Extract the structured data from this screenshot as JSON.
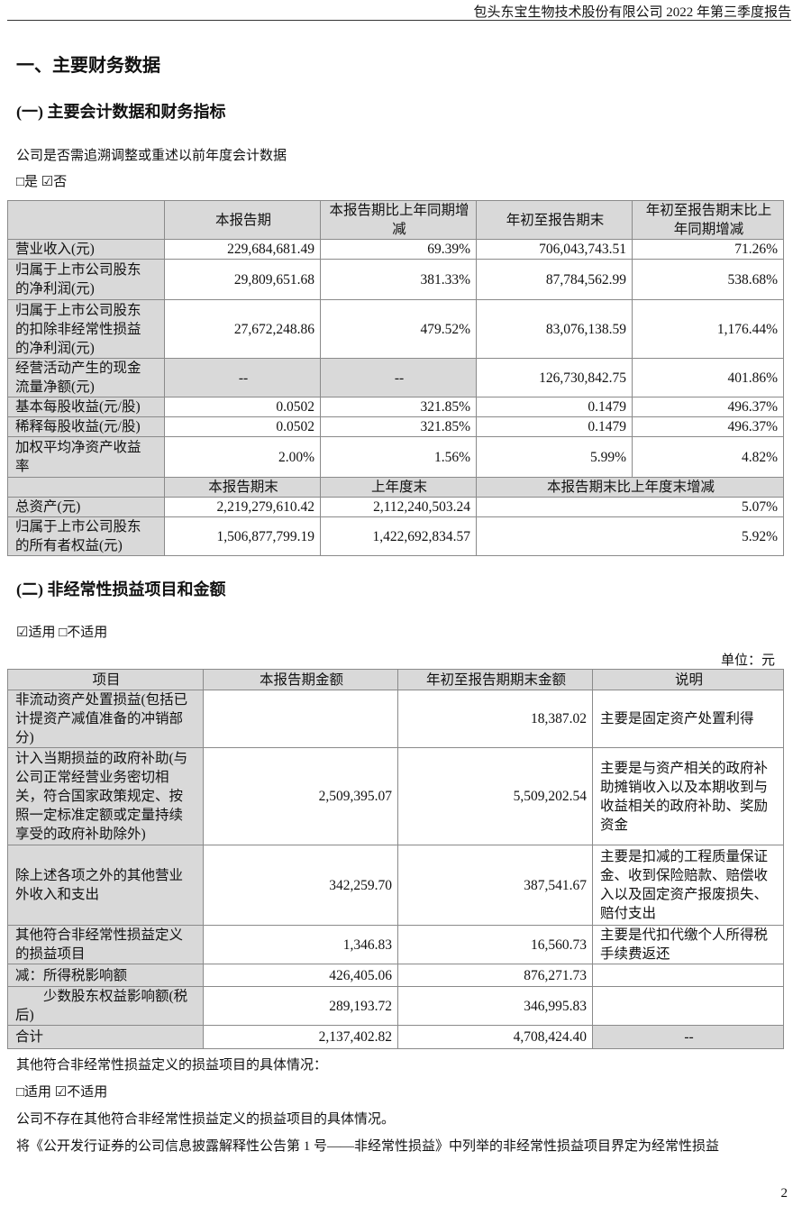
{
  "header": {
    "title": "包头东宝生物技术股份有限公司 2022 年第三季度报告"
  },
  "section_title": "一、主要财务数据",
  "sub1": {
    "title": "(一) 主要会计数据和财务指标",
    "question": "公司是否需追溯调整或重述以前年度会计数据",
    "options": "□是 ☑否",
    "table": {
      "headers": [
        "",
        "本报告期",
        "本报告期比上年同期增减",
        "年初至报告期末",
        "年初至报告期末比上年同期增减"
      ],
      "rows": [
        {
          "label": "营业收入(元)",
          "values": [
            "229,684,681.49",
            "69.39%",
            "706,043,743.51",
            "71.26%"
          ]
        },
        {
          "label": "归属于上市公司股东的净利润(元)",
          "values": [
            "29,809,651.68",
            "381.33%",
            "87,784,562.99",
            "538.68%"
          ]
        },
        {
          "label": "归属于上市公司股东的扣除非经常性损益的净利润(元)",
          "values": [
            "27,672,248.86",
            "479.52%",
            "83,076,138.59",
            "1,176.44%"
          ]
        },
        {
          "label": "经营活动产生的现金流量净额(元)",
          "values": [
            "--",
            "--",
            "126,730,842.75",
            "401.86%"
          ]
        },
        {
          "label": "基本每股收益(元/股)",
          "values": [
            "0.0502",
            "321.85%",
            "0.1479",
            "496.37%"
          ]
        },
        {
          "label": "稀释每股收益(元/股)",
          "values": [
            "0.0502",
            "321.85%",
            "0.1479",
            "496.37%"
          ]
        },
        {
          "label": "加权平均净资产收益率",
          "values": [
            "2.00%",
            "1.56%",
            "5.99%",
            "4.82%"
          ]
        }
      ],
      "headers2": [
        "",
        "本报告期末",
        "上年度末",
        "本报告期末比上年度末增减"
      ],
      "rows2": [
        {
          "label": "总资产(元)",
          "values": [
            "2,219,279,610.42",
            "2,112,240,503.24",
            "5.07%"
          ]
        },
        {
          "label": "归属于上市公司股东的所有者权益(元)",
          "values": [
            "1,506,877,799.19",
            "1,422,692,834.57",
            "5.92%"
          ]
        }
      ]
    }
  },
  "sub2": {
    "title": "(二) 非经常性损益项目和金额",
    "options": "☑适用 □不适用",
    "unit": "单位：元",
    "table": {
      "headers": [
        "项目",
        "本报告期金额",
        "年初至报告期期末金额",
        "说明"
      ],
      "rows": [
        {
          "label": "非流动资产处置损益(包括已计提资产减值准备的冲销部分)",
          "values": [
            "",
            "18,387.02",
            "主要是固定资产处置利得"
          ]
        },
        {
          "label": "计入当期损益的政府补助(与公司正常经营业务密切相关，符合国家政策规定、按照一定标准定额或定量持续享受的政府补助除外)",
          "values": [
            "2,509,395.07",
            "5,509,202.54",
            "主要是与资产相关的政府补助摊销收入以及本期收到与收益相关的政府补助、奖励资金"
          ]
        },
        {
          "label": "除上述各项之外的其他营业外收入和支出",
          "values": [
            "342,259.70",
            "387,541.67",
            "主要是扣减的工程质量保证金、收到保险赔款、赔偿收入以及固定资产报废损失、赔付支出"
          ]
        },
        {
          "label": "其他符合非经常性损益定义的损益项目",
          "values": [
            "1,346.83",
            "16,560.73",
            "主要是代扣代缴个人所得税手续费返还"
          ]
        },
        {
          "label": "减：所得税影响额",
          "values": [
            "426,405.06",
            "876,271.73",
            ""
          ]
        },
        {
          "label": "　　少数股东权益影响额(税后)",
          "values": [
            "289,193.72",
            "346,995.83",
            ""
          ]
        },
        {
          "label": "合计",
          "values": [
            "2,137,402.82",
            "4,708,424.40",
            "--"
          ]
        }
      ]
    }
  },
  "footer_text": {
    "line1": "其他符合非经常性损益定义的损益项目的具体情况：",
    "line2": "□适用 ☑不适用",
    "line3": "公司不存在其他符合非经常性损益定义的损益项目的具体情况。",
    "line4": "将《公开发行证券的公司信息披露解释性公告第 1 号——非经常性损益》中列举的非经常性损益项目界定为经常性损益"
  },
  "page_number": "2",
  "colors": {
    "cell_shade": "#d9d9d9",
    "border": "#8a8a8a"
  }
}
